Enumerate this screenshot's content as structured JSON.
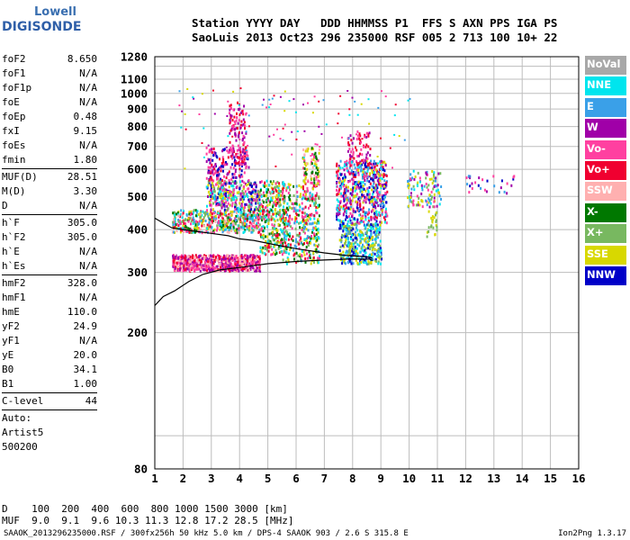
{
  "logo": {
    "line1": "Lowell",
    "line2": "DIGISONDE"
  },
  "header": {
    "line1": "Station YYYY DAY   DDD HHMMSS P1  FFS S AXN PPS IGA PS",
    "line2": "SaoLuis 2013 Oct23 296 235000 RSF 005 2 713 100 10+ 22"
  },
  "params": [
    {
      "group": [
        {
          "name": "foF2",
          "value": "8.650"
        },
        {
          "name": "foF1",
          "value": "N/A"
        },
        {
          "name": "foF1p",
          "value": "N/A"
        },
        {
          "name": "foE",
          "value": "N/A"
        },
        {
          "name": "foEp",
          "value": "0.48"
        },
        {
          "name": "fxI",
          "value": "9.15"
        },
        {
          "name": "foEs",
          "value": "N/A"
        },
        {
          "name": "fmin",
          "value": "1.80"
        }
      ]
    },
    {
      "group": [
        {
          "name": "MUF(D)",
          "value": "28.51"
        },
        {
          "name": "M(D)",
          "value": "3.30"
        },
        {
          "name": "D",
          "value": "N/A"
        }
      ]
    },
    {
      "group": [
        {
          "name": "h`F",
          "value": "305.0"
        },
        {
          "name": "h`F2",
          "value": "305.0"
        },
        {
          "name": "h`E",
          "value": "N/A"
        },
        {
          "name": "h`Es",
          "value": "N/A"
        }
      ]
    },
    {
      "group": [
        {
          "name": "hmF2",
          "value": "328.0"
        },
        {
          "name": "hmF1",
          "value": "N/A"
        },
        {
          "name": "hmE",
          "value": "110.0"
        },
        {
          "name": "yF2",
          "value": "24.9"
        },
        {
          "name": "yF1",
          "value": "N/A"
        },
        {
          "name": "yE",
          "value": "20.0"
        },
        {
          "name": "B0",
          "value": "34.1"
        },
        {
          "name": "B1",
          "value": "1.00"
        }
      ]
    },
    {
      "group": [
        {
          "name": "C-level",
          "value": "44"
        }
      ]
    }
  ],
  "auto": [
    "Auto:",
    "Artist5",
    "500200"
  ],
  "legend": [
    {
      "label": "NoVal",
      "color": "#a8a8a8"
    },
    {
      "label": "NNE",
      "color": "#00e5ee"
    },
    {
      "label": "E",
      "color": "#3aa0e8"
    },
    {
      "label": "W",
      "color": "#a000a8"
    },
    {
      "label": "Vo-",
      "color": "#ff40a0"
    },
    {
      "label": "Vo+",
      "color": "#f00030"
    },
    {
      "label": "SSW",
      "color": "#ffb0b0"
    },
    {
      "label": "X-",
      "color": "#007800"
    },
    {
      "label": "X+",
      "color": "#78b860"
    },
    {
      "label": "SSE",
      "color": "#d8d800"
    },
    {
      "label": "NNW",
      "color": "#0000c8"
    }
  ],
  "chart_data": {
    "type": "scatter",
    "xlim": [
      1,
      16
    ],
    "ylim": [
      80,
      1280
    ],
    "x_ticks": [
      1,
      2,
      3,
      4,
      5,
      6,
      7,
      8,
      9,
      10,
      11,
      12,
      13,
      14,
      15,
      16
    ],
    "y_ticks": [
      80,
      200,
      300,
      400,
      500,
      600,
      700,
      800,
      900,
      1000,
      1100,
      1280
    ],
    "grid": true,
    "log_y": true,
    "clusters": [
      {
        "x": [
          1.6,
          4.7
        ],
        "y": [
          305,
          340
        ],
        "colors": [
          4,
          5,
          3,
          6
        ],
        "density": 700
      },
      {
        "x": [
          1.6,
          4.7
        ],
        "y": [
          395,
          460
        ],
        "colors": [
          4,
          5,
          9,
          6,
          7,
          8,
          1,
          2
        ],
        "density": 500
      },
      {
        "x": [
          2.8,
          4.7
        ],
        "y": [
          460,
          560
        ],
        "colors": [
          9,
          3,
          4,
          10,
          1,
          8
        ],
        "density": 350
      },
      {
        "x": [
          2.8,
          4.3
        ],
        "y": [
          560,
          700
        ],
        "colors": [
          3,
          4,
          10,
          5
        ],
        "density": 160
      },
      {
        "x": [
          3.6,
          4.2
        ],
        "y": [
          620,
          950
        ],
        "colors": [
          4,
          5,
          3
        ],
        "density": 120
      },
      {
        "x": [
          4.7,
          5.6
        ],
        "y": [
          340,
          560
        ],
        "colors": [
          9,
          8,
          7,
          4,
          5,
          1
        ],
        "density": 330
      },
      {
        "x": [
          5.5,
          6.8
        ],
        "y": [
          320,
          550
        ],
        "colors": [
          9,
          7,
          4,
          5,
          8,
          1,
          2
        ],
        "density": 380
      },
      {
        "x": [
          6.2,
          6.8
        ],
        "y": [
          550,
          700
        ],
        "colors": [
          7,
          9,
          4,
          6
        ],
        "density": 90
      },
      {
        "x": [
          7.5,
          9.0
        ],
        "y": [
          320,
          420
        ],
        "colors": [
          1,
          2,
          9,
          8,
          10
        ],
        "density": 380
      },
      {
        "x": [
          7.4,
          9.2
        ],
        "y": [
          420,
          640
        ],
        "colors": [
          10,
          3,
          4,
          1,
          5,
          9,
          2
        ],
        "density": 600
      },
      {
        "x": [
          7.8,
          8.6
        ],
        "y": [
          640,
          780
        ],
        "colors": [
          4,
          5,
          3
        ],
        "density": 60
      },
      {
        "x": [
          9.9,
          11.1
        ],
        "y": [
          470,
          600
        ],
        "colors": [
          1,
          2,
          8,
          3,
          4,
          9
        ],
        "density": 110
      },
      {
        "x": [
          10.6,
          11.0
        ],
        "y": [
          380,
          460
        ],
        "colors": [
          8,
          9
        ],
        "density": 25
      },
      {
        "x": [
          12.0,
          13.7
        ],
        "y": [
          515,
          580
        ],
        "colors": [
          4,
          10,
          2,
          3
        ],
        "density": 30
      }
    ],
    "trace_lower": [
      [
        1.0,
        240
      ],
      [
        1.3,
        255
      ],
      [
        1.7,
        265
      ],
      [
        2.2,
        282
      ],
      [
        2.7,
        296
      ],
      [
        3.3,
        305
      ],
      [
        4.0,
        310
      ],
      [
        5.0,
        318
      ],
      [
        6.0,
        323
      ],
      [
        7.0,
        326
      ],
      [
        7.8,
        328
      ],
      [
        8.3,
        328
      ],
      [
        8.6,
        328
      ],
      [
        8.7,
        325
      ]
    ],
    "trace_upper": [
      [
        1.0,
        432
      ],
      [
        1.3,
        418
      ],
      [
        1.6,
        405
      ],
      [
        2.2,
        398
      ],
      [
        3.0,
        390
      ],
      [
        3.6,
        384
      ],
      [
        4.0,
        376
      ],
      [
        4.5,
        372
      ],
      [
        5.2,
        362
      ],
      [
        6.0,
        352
      ],
      [
        7.0,
        342
      ],
      [
        7.8,
        336
      ],
      [
        8.3,
        334
      ],
      [
        8.6,
        332
      ],
      [
        8.7,
        330
      ]
    ]
  },
  "bottom": {
    "line1": "D    100  200  400  600  800 1000 1500 3000 [km]",
    "line2": "MUF  9.0  9.1  9.6 10.3 11.3 12.8 17.2 28.5 [MHz]"
  },
  "footer": "SAAOK_2013296235000.RSF / 300fx256h 50 kHz 5.0 km / DPS-4 SAAOK 903 / 2.6 S 315.8 E",
  "version": "Ion2Png 1.3.17"
}
